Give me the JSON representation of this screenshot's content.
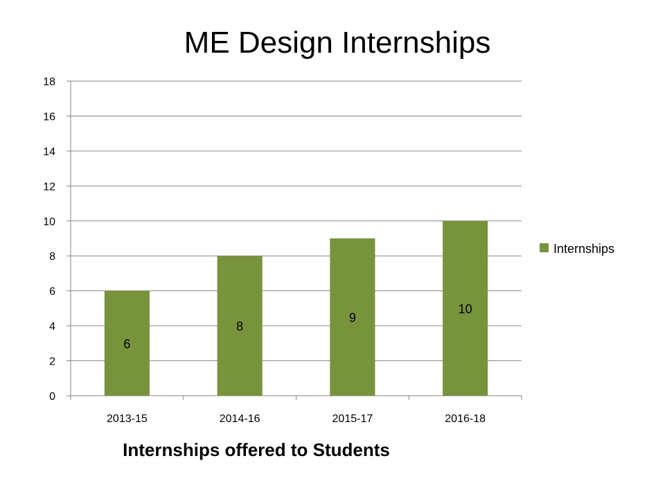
{
  "chart_data": {
    "type": "bar",
    "title": "ME Design Internships",
    "xlabel": "Internships offered to Students",
    "ylabel": "",
    "categories": [
      "2013-15",
      "2014-16",
      "2015-17",
      "2016-18"
    ],
    "series": [
      {
        "name": "Internships",
        "values": [
          6,
          8,
          9,
          10
        ],
        "color": "#77933C"
      }
    ],
    "ylim": [
      0,
      18
    ],
    "yticks": [
      0,
      2,
      4,
      6,
      8,
      10,
      12,
      14,
      16,
      18
    ],
    "grid": true,
    "legend": "right",
    "data_labels": true
  }
}
